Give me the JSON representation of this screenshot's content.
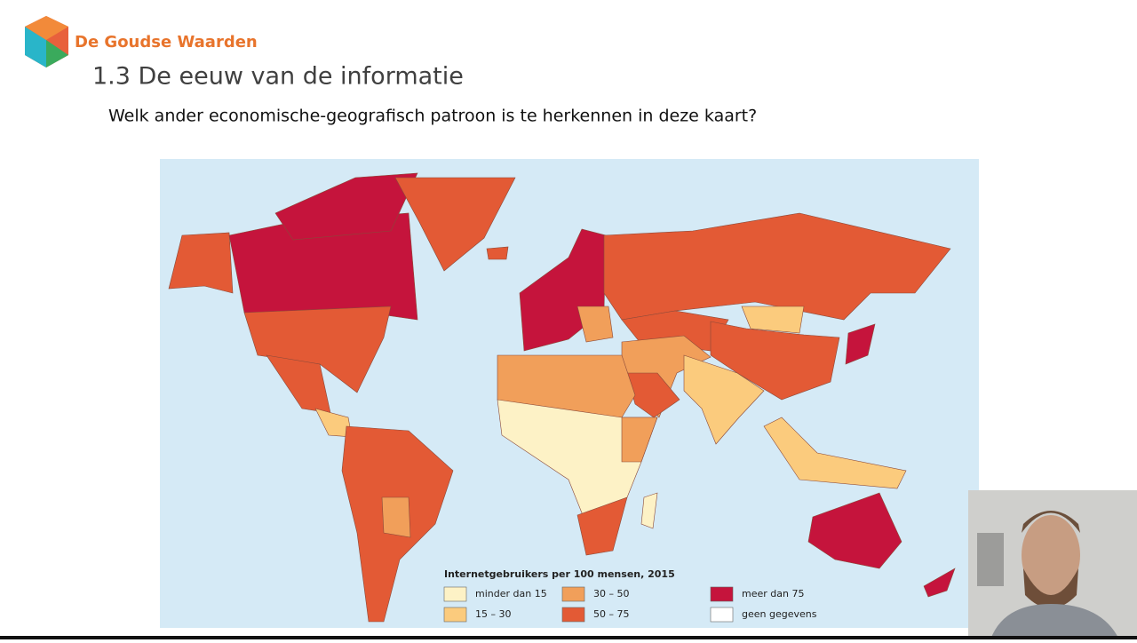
{
  "header": {
    "logo": "De Goudse Waarden",
    "title": "1.3 De eeuw van de informatie",
    "question": "Welk ander economische-geografisch patroon is te herkennen in deze kaart?"
  },
  "map": {
    "legend": {
      "title": "Internetgebruikers per 100 mensen, 2015",
      "classes": [
        {
          "label": "minder dan 15",
          "color": "#fdf2c6"
        },
        {
          "label": "15 – 30",
          "color": "#fbcb7d"
        },
        {
          "label": "30 – 50",
          "color": "#f19f5a"
        },
        {
          "label": "50 – 75",
          "color": "#e35a35"
        },
        {
          "label": "meer dan 75",
          "color": "#c5143c"
        },
        {
          "label": "geen gegevens",
          "color": "#ffffff"
        }
      ]
    }
  }
}
